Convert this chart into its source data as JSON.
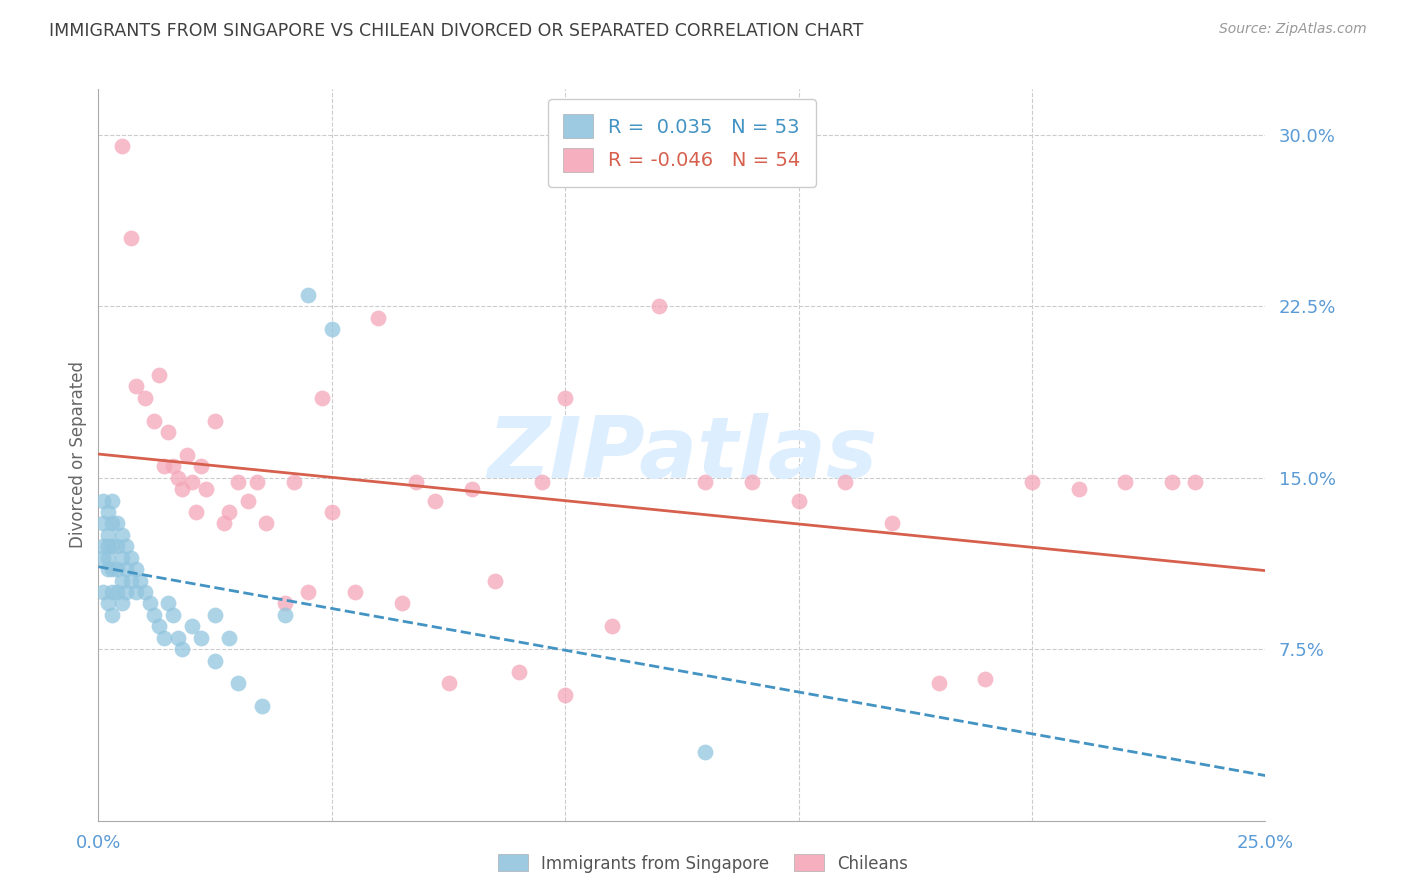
{
  "title": "IMMIGRANTS FROM SINGAPORE VS CHILEAN DIVORCED OR SEPARATED CORRELATION CHART",
  "source": "Source: ZipAtlas.com",
  "ylabel": "Divorced or Separated",
  "xlim": [
    0.0,
    0.25
  ],
  "ylim": [
    0.0,
    0.32
  ],
  "legend1_R": " 0.035",
  "legend1_N": "53",
  "legend2_R": "-0.046",
  "legend2_N": "54",
  "blue_color": "#92c5de",
  "pink_color": "#f4a6b8",
  "trend_blue_color": "#4393c3",
  "trend_pink_color": "#d6604d",
  "background_color": "#ffffff",
  "grid_color": "#cccccc",
  "axis_label_color": "#5b9bd5",
  "title_color": "#404040",
  "watermark_color": "#ddeeff",
  "blue_x": [
    0.001,
    0.001,
    0.001,
    0.001,
    0.001,
    0.002,
    0.002,
    0.002,
    0.002,
    0.002,
    0.002,
    0.003,
    0.003,
    0.003,
    0.003,
    0.003,
    0.003,
    0.004,
    0.004,
    0.004,
    0.004,
    0.005,
    0.005,
    0.005,
    0.005,
    0.006,
    0.006,
    0.006,
    0.007,
    0.007,
    0.008,
    0.008,
    0.009,
    0.01,
    0.011,
    0.012,
    0.013,
    0.014,
    0.015,
    0.016,
    0.017,
    0.018,
    0.02,
    0.022,
    0.025,
    0.025,
    0.028,
    0.03,
    0.035,
    0.04,
    0.045,
    0.05,
    0.13
  ],
  "blue_y": [
    0.1,
    0.115,
    0.12,
    0.13,
    0.14,
    0.095,
    0.11,
    0.115,
    0.12,
    0.125,
    0.135,
    0.09,
    0.1,
    0.11,
    0.12,
    0.13,
    0.14,
    0.1,
    0.11,
    0.12,
    0.13,
    0.095,
    0.105,
    0.115,
    0.125,
    0.1,
    0.11,
    0.12,
    0.105,
    0.115,
    0.1,
    0.11,
    0.105,
    0.1,
    0.095,
    0.09,
    0.085,
    0.08,
    0.095,
    0.09,
    0.08,
    0.075,
    0.085,
    0.08,
    0.09,
    0.07,
    0.08,
    0.06,
    0.05,
    0.09,
    0.23,
    0.215,
    0.03
  ],
  "pink_x": [
    0.005,
    0.007,
    0.008,
    0.01,
    0.012,
    0.013,
    0.014,
    0.015,
    0.016,
    0.017,
    0.018,
    0.019,
    0.02,
    0.021,
    0.022,
    0.023,
    0.025,
    0.027,
    0.028,
    0.03,
    0.032,
    0.034,
    0.036,
    0.04,
    0.042,
    0.045,
    0.048,
    0.05,
    0.055,
    0.06,
    0.065,
    0.068,
    0.072,
    0.075,
    0.08,
    0.085,
    0.09,
    0.095,
    0.1,
    0.11,
    0.12,
    0.13,
    0.14,
    0.15,
    0.16,
    0.17,
    0.18,
    0.19,
    0.2,
    0.21,
    0.22,
    0.23,
    0.235,
    0.1
  ],
  "pink_y": [
    0.295,
    0.255,
    0.19,
    0.185,
    0.175,
    0.195,
    0.155,
    0.17,
    0.155,
    0.15,
    0.145,
    0.16,
    0.148,
    0.135,
    0.155,
    0.145,
    0.175,
    0.13,
    0.135,
    0.148,
    0.14,
    0.148,
    0.13,
    0.095,
    0.148,
    0.1,
    0.185,
    0.135,
    0.1,
    0.22,
    0.095,
    0.148,
    0.14,
    0.06,
    0.145,
    0.105,
    0.065,
    0.148,
    0.055,
    0.085,
    0.225,
    0.148,
    0.148,
    0.14,
    0.148,
    0.13,
    0.06,
    0.062,
    0.148,
    0.145,
    0.148,
    0.148,
    0.148,
    0.185
  ]
}
